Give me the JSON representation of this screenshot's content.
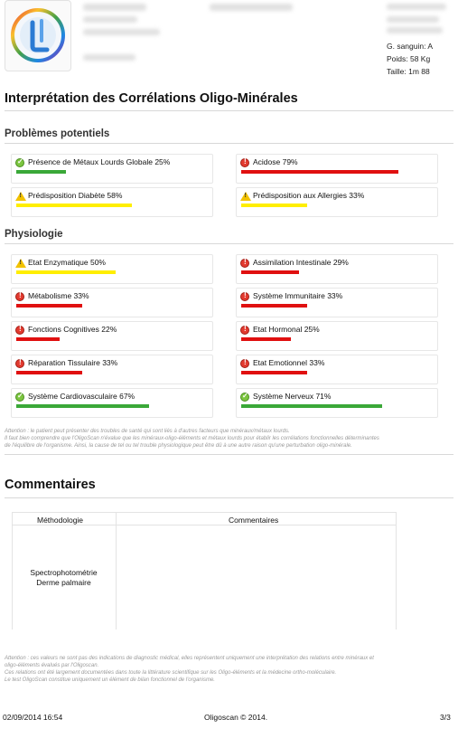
{
  "patient": {
    "blood_group": "G. sanguin: A",
    "weight": "Poids: 58 Kg",
    "height": "Taille: 1m 88"
  },
  "title": "Interprétation des Corrélations Oligo-Minérales",
  "colors": {
    "green": "#3aa838",
    "yellow": "#ffee00",
    "red": "#e01010"
  },
  "problems": {
    "title": "Problèmes potentiels",
    "items": [
      {
        "label": "Présence de Métaux Lourds Globale 25%",
        "value": 25,
        "status": "ok",
        "icon": "check-circle-icon",
        "color": "#3aa838"
      },
      {
        "label": "Acidose 79%",
        "value": 79,
        "status": "danger",
        "icon": "exclamation-circle-icon",
        "color": "#e01010"
      },
      {
        "label": "Prédisposition Diabète 58%",
        "value": 58,
        "status": "warn",
        "icon": "warning-triangle-icon",
        "color": "#ffee00"
      },
      {
        "label": "Prédisposition aux Allergies 33%",
        "value": 33,
        "status": "warn",
        "icon": "warning-triangle-icon",
        "color": "#ffee00"
      }
    ]
  },
  "physiology": {
    "title": "Physiologie",
    "items": [
      {
        "label": "Etat Enzymatique 50%",
        "value": 50,
        "status": "warn",
        "icon": "warning-triangle-icon",
        "color": "#ffee00"
      },
      {
        "label": "Assimilation Intestinale 29%",
        "value": 29,
        "status": "danger",
        "icon": "exclamation-circle-icon",
        "color": "#e01010"
      },
      {
        "label": "Métabolisme 33%",
        "value": 33,
        "status": "danger",
        "icon": "exclamation-circle-icon",
        "color": "#e01010"
      },
      {
        "label": "Système Immunitaire 33%",
        "value": 33,
        "status": "danger",
        "icon": "exclamation-circle-icon",
        "color": "#e01010"
      },
      {
        "label": "Fonctions Cognitives 22%",
        "value": 22,
        "status": "danger",
        "icon": "exclamation-circle-icon",
        "color": "#e01010"
      },
      {
        "label": "Etat Hormonal 25%",
        "value": 25,
        "status": "danger",
        "icon": "exclamation-circle-icon",
        "color": "#e01010"
      },
      {
        "label": "Réparation Tissulaire 33%",
        "value": 33,
        "status": "danger",
        "icon": "exclamation-circle-icon",
        "color": "#e01010"
      },
      {
        "label": "Etat Emotionnel 33%",
        "value": 33,
        "status": "danger",
        "icon": "exclamation-circle-icon",
        "color": "#e01010"
      },
      {
        "label": "Système Cardiovasculaire 67%",
        "value": 67,
        "status": "ok",
        "icon": "check-circle-icon",
        "color": "#3aa838"
      },
      {
        "label": "Système Nerveux 71%",
        "value": 71,
        "status": "ok",
        "icon": "check-circle-icon",
        "color": "#3aa838"
      }
    ]
  },
  "disclaimer1": [
    "Attention : le patient peut présenter des troubles de santé qui sont liés à d'autres facteurs que minéraux/métaux lourds.",
    "Il faut bien comprendre que l'OligoScan n'évalue que les minéraux-oligo-éléments et métaux lourds pour établir les corrélations fonctionnelles déterminantes",
    "de l'équilibre de l'organisme. Ainsi, la cause de tel ou tel trouble physiologique peut être dû à une autre raison qu'une perturbation oligo-minérale."
  ],
  "comments": {
    "title": "Commentaires",
    "col_method": "Méthodologie",
    "col_comments": "Commentaires",
    "method_line1": "Spectrophotométrie",
    "method_line2": "Derme palmaire"
  },
  "disclaimer2": [
    "Attention : ces valeurs ne sont pas des indications de diagnostic médical, elles représentent uniquement une interprétation des relations entre minéraux et",
    "oligo-éléments évalués par l'Oligoscan.",
    "Ces relations ont été largement documentées dans toute la littérature scientifique sur les Oligo-éléments et la médecine ortho-moléculaire.",
    "Le test OligoScan constitue uniquement un élément de bilan fonctionnel de l'organisme."
  ],
  "footer": {
    "datetime": "02/09/2014 16:54",
    "copyright": "Oligoscan © 2014.",
    "page": "3/3"
  }
}
